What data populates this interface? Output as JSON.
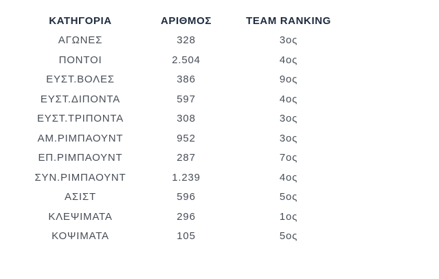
{
  "colors": {
    "background": "#ffffff",
    "header_text": "#1d2b3e",
    "row_text": "#474d57"
  },
  "table": {
    "headers": [
      "ΚΑΤΗΓΟΡΙΑ",
      "ΑΡΙΘΜΟΣ",
      "TEAM RANKING"
    ],
    "rows": [
      {
        "category": "ΑΓΩΝΕΣ",
        "number": "328",
        "ranking": "3ος"
      },
      {
        "category": "ΠΟΝΤΟΙ",
        "number": "2.504",
        "ranking": "4ος"
      },
      {
        "category": "ΕΥΣΤ.ΒΟΛΕΣ",
        "number": "386",
        "ranking": "9ος"
      },
      {
        "category": "ΕΥΣΤ.ΔΙΠΟΝΤΑ",
        "number": "597",
        "ranking": "4ος"
      },
      {
        "category": "ΕΥΣΤ.ΤΡΙΠΟΝΤΑ",
        "number": "308",
        "ranking": "3ος"
      },
      {
        "category": "ΑΜ.ΡΙΜΠΑΟΥΝΤ",
        "number": "952",
        "ranking": "3ος"
      },
      {
        "category": "ΕΠ.ΡΙΜΠΑΟΥΝΤ",
        "number": "287",
        "ranking": "7ος"
      },
      {
        "category": "ΣΥΝ.ΡΙΜΠΑΟΥΝΤ",
        "number": "1.239",
        "ranking": "4ος"
      },
      {
        "category": "ΑΣΙΣΤ",
        "number": "596",
        "ranking": "5ος"
      },
      {
        "category": "ΚΛΕΨΙΜΑΤΑ",
        "number": "296",
        "ranking": "1ος"
      },
      {
        "category": "ΚΟΨΙΜΑΤΑ",
        "number": "105",
        "ranking": "5ος"
      }
    ]
  },
  "chart_data": {
    "type": "table",
    "title": "",
    "columns": [
      "ΚΑΤΗΓΟΡΙΑ",
      "ΑΡΙΘΜΟΣ",
      "TEAM RANKING"
    ],
    "categories": [
      "ΑΓΩΝΕΣ",
      "ΠΟΝΤΟΙ",
      "ΕΥΣΤ.ΒΟΛΕΣ",
      "ΕΥΣΤ.ΔΙΠΟΝΤΑ",
      "ΕΥΣΤ.ΤΡΙΠΟΝΤΑ",
      "ΑΜ.ΡΙΜΠΑΟΥΝΤ",
      "ΕΠ.ΡΙΜΠΑΟΥΝΤ",
      "ΣΥΝ.ΡΙΜΠΑΟΥΝΤ",
      "ΑΣΙΣΤ",
      "ΚΛΕΨΙΜΑΤΑ",
      "ΚΟΨΙΜΑΤΑ"
    ],
    "series": [
      {
        "name": "ΑΡΙΘΜΟΣ",
        "values": [
          328,
          2504,
          386,
          597,
          308,
          952,
          287,
          1239,
          596,
          296,
          105
        ]
      },
      {
        "name": "TEAM RANKING",
        "values": [
          "3ος",
          "4ος",
          "9ος",
          "4ος",
          "3ος",
          "3ος",
          "7ος",
          "4ος",
          "5ος",
          "1ος",
          "5ος"
        ]
      }
    ]
  }
}
